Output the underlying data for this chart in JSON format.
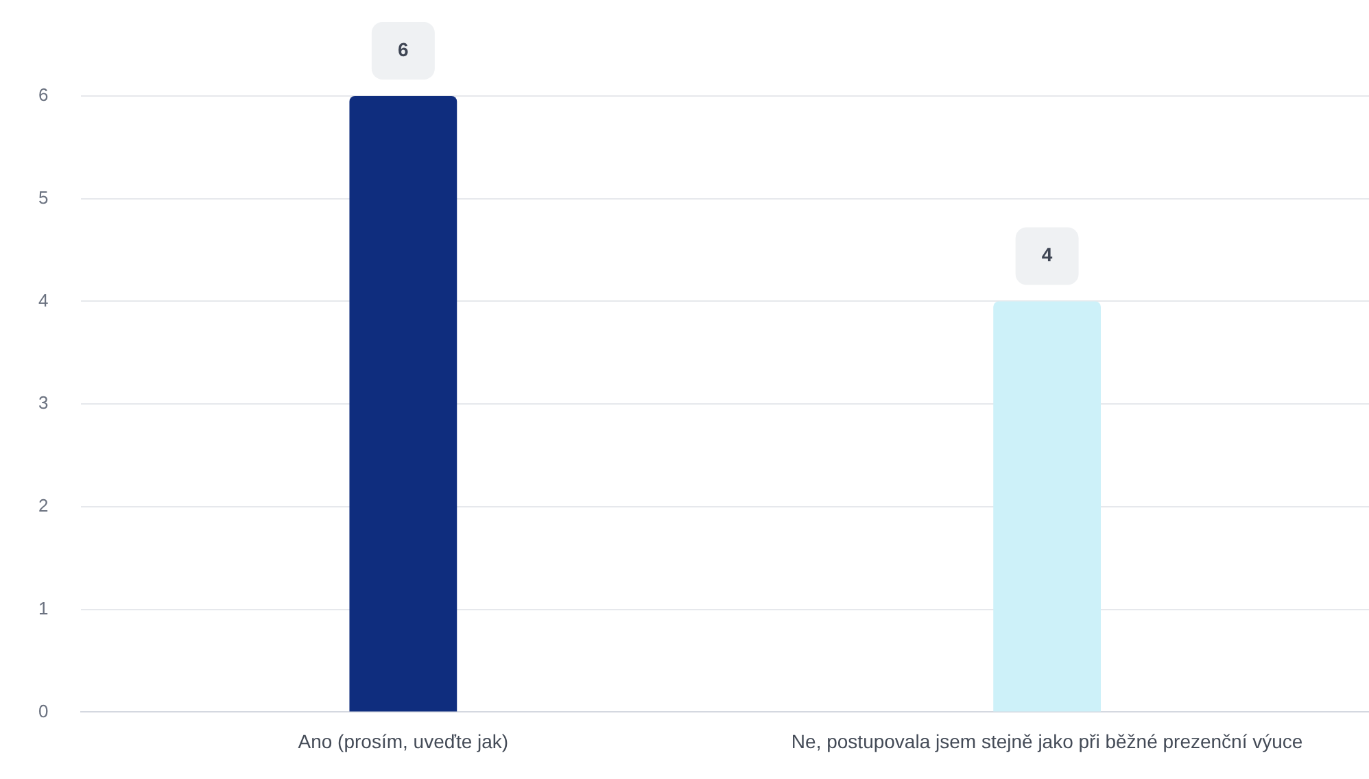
{
  "chart_data": {
    "type": "bar",
    "categories": [
      "Ano (prosím, uveďte jak)",
      "Ne, postupovala jsem stejně jako při běžné prezenční výuce"
    ],
    "values": [
      6,
      4
    ],
    "colors": [
      "#0f2d7e",
      "#cdf1f9"
    ],
    "ylim": [
      0,
      6
    ],
    "yticks": [
      0,
      1,
      2,
      3,
      4,
      5,
      6
    ],
    "grid": "y",
    "data_labels": true
  }
}
